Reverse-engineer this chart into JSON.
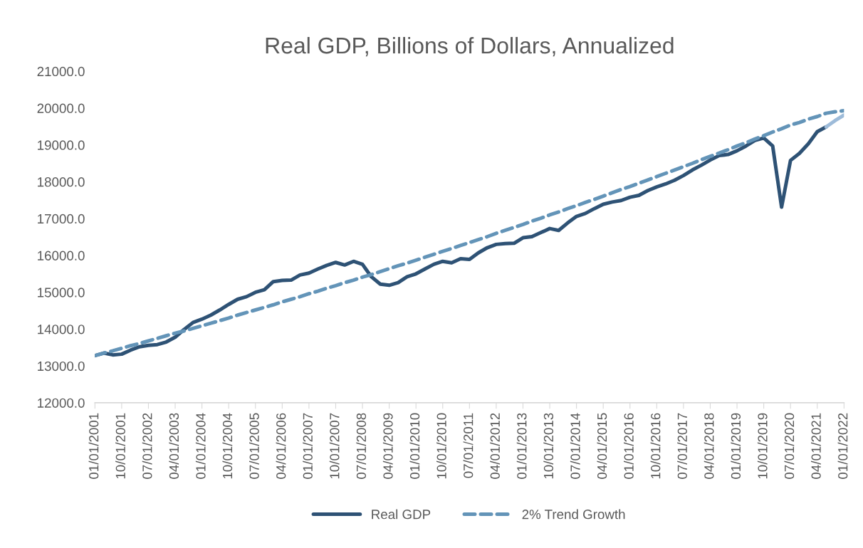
{
  "chart_data": {
    "type": "line",
    "title": "Real GDP, Billions of Dollars, Annualized",
    "categories": [
      "01/01/2001",
      null,
      null,
      "10/01/2001",
      null,
      null,
      "07/01/2002",
      null,
      null,
      "04/01/2003",
      null,
      null,
      "01/01/2004",
      null,
      null,
      "10/01/2004",
      null,
      null,
      "07/01/2005",
      null,
      null,
      "04/01/2006",
      null,
      null,
      "01/01/2007",
      null,
      null,
      "10/01/2007",
      null,
      null,
      "07/01/2008",
      null,
      null,
      "04/01/2009",
      null,
      null,
      "01/01/2010",
      null,
      null,
      "10/01/2010",
      null,
      null,
      "07/01/2011",
      null,
      null,
      "04/01/2012",
      null,
      null,
      "01/01/2013",
      null,
      null,
      "10/01/2013",
      null,
      null,
      "07/01/2014",
      null,
      null,
      "04/01/2015",
      null,
      null,
      "01/01/2016",
      null,
      null,
      "10/01/2016",
      null,
      null,
      "07/01/2017",
      null,
      null,
      "04/01/2018",
      null,
      null,
      "01/01/2019",
      null,
      null,
      "10/01/2019",
      null,
      null,
      "07/01/2020",
      null,
      null,
      "04/01/2021",
      null,
      null,
      "01/01/2022"
    ],
    "series": [
      {
        "name": "Real GDP",
        "color": "#2e5275",
        "line_style": "solid",
        "values": [
          13280,
          13350,
          13300,
          13320,
          13430,
          13520,
          13560,
          13580,
          13650,
          13780,
          13990,
          14180,
          14270,
          14380,
          14520,
          14670,
          14810,
          14880,
          15000,
          15070,
          15290,
          15320,
          15330,
          15470,
          15520,
          15630,
          15730,
          15810,
          15740,
          15840,
          15760,
          15420,
          15220,
          15190,
          15260,
          15420,
          15500,
          15630,
          15760,
          15840,
          15800,
          15910,
          15890,
          16070,
          16210,
          16300,
          16320,
          16330,
          16480,
          16510,
          16620,
          16730,
          16680,
          16880,
          17060,
          17140,
          17270,
          17390,
          17450,
          17490,
          17580,
          17630,
          17760,
          17860,
          17940,
          18040,
          18170,
          18320,
          18450,
          18590,
          18710,
          18740,
          18840,
          18970,
          19120,
          19190,
          18970,
          17310,
          18580,
          18770,
          19030,
          19360,
          19490,
          null,
          null
        ]
      },
      {
        "name": "2% Trend Growth",
        "color": "#6394b8",
        "line_style": "dashed",
        "values": [
          13280,
          13350,
          13410,
          13480,
          13550,
          13610,
          13680,
          13750,
          13820,
          13890,
          13950,
          14020,
          14090,
          14160,
          14230,
          14300,
          14380,
          14450,
          14520,
          14590,
          14660,
          14740,
          14810,
          14880,
          14960,
          15030,
          15110,
          15180,
          15260,
          15330,
          15410,
          15480,
          15560,
          15640,
          15720,
          15790,
          15870,
          15950,
          16030,
          16110,
          16190,
          16270,
          16350,
          16430,
          16510,
          16600,
          16680,
          16760,
          16840,
          16930,
          17010,
          17100,
          17180,
          17270,
          17350,
          17440,
          17520,
          17610,
          17700,
          17790,
          17870,
          17960,
          18050,
          18140,
          18230,
          18320,
          18410,
          18500,
          18600,
          18690,
          18780,
          18870,
          18970,
          19060,
          19160,
          19250,
          19350,
          19440,
          19540,
          19610,
          19700,
          19770,
          19860,
          19900,
          19930
        ]
      },
      {
        "color": "#9dbbd9",
        "line_style": "solid",
        "values": [
          null,
          null,
          null,
          null,
          null,
          null,
          null,
          null,
          null,
          null,
          null,
          null,
          null,
          null,
          null,
          null,
          null,
          null,
          null,
          null,
          null,
          null,
          null,
          null,
          null,
          null,
          null,
          null,
          null,
          null,
          null,
          null,
          null,
          null,
          null,
          null,
          null,
          null,
          null,
          null,
          null,
          null,
          null,
          null,
          null,
          null,
          null,
          null,
          null,
          null,
          null,
          null,
          null,
          null,
          null,
          null,
          null,
          null,
          null,
          null,
          null,
          null,
          null,
          null,
          null,
          null,
          null,
          null,
          null,
          null,
          null,
          null,
          null,
          null,
          null,
          null,
          null,
          null,
          null,
          null,
          null,
          null,
          19490,
          19660,
          19810
        ]
      }
    ],
    "ylim": [
      12000,
      21000
    ],
    "yticks": [
      {
        "value": 12000,
        "label": "12000.0"
      },
      {
        "value": 13000,
        "label": "13000.0"
      },
      {
        "value": 14000,
        "label": "14000.0"
      },
      {
        "value": 15000,
        "label": "15000.0"
      },
      {
        "value": 16000,
        "label": "16000.0"
      },
      {
        "value": 17000,
        "label": "17000.0"
      },
      {
        "value": 18000,
        "label": "18000.0"
      },
      {
        "value": 19000,
        "label": "19000.0"
      },
      {
        "value": 20000,
        "label": "20000.0"
      },
      {
        "value": 21000,
        "label": "21000.0"
      }
    ],
    "grid": false,
    "legend": "bottom"
  }
}
